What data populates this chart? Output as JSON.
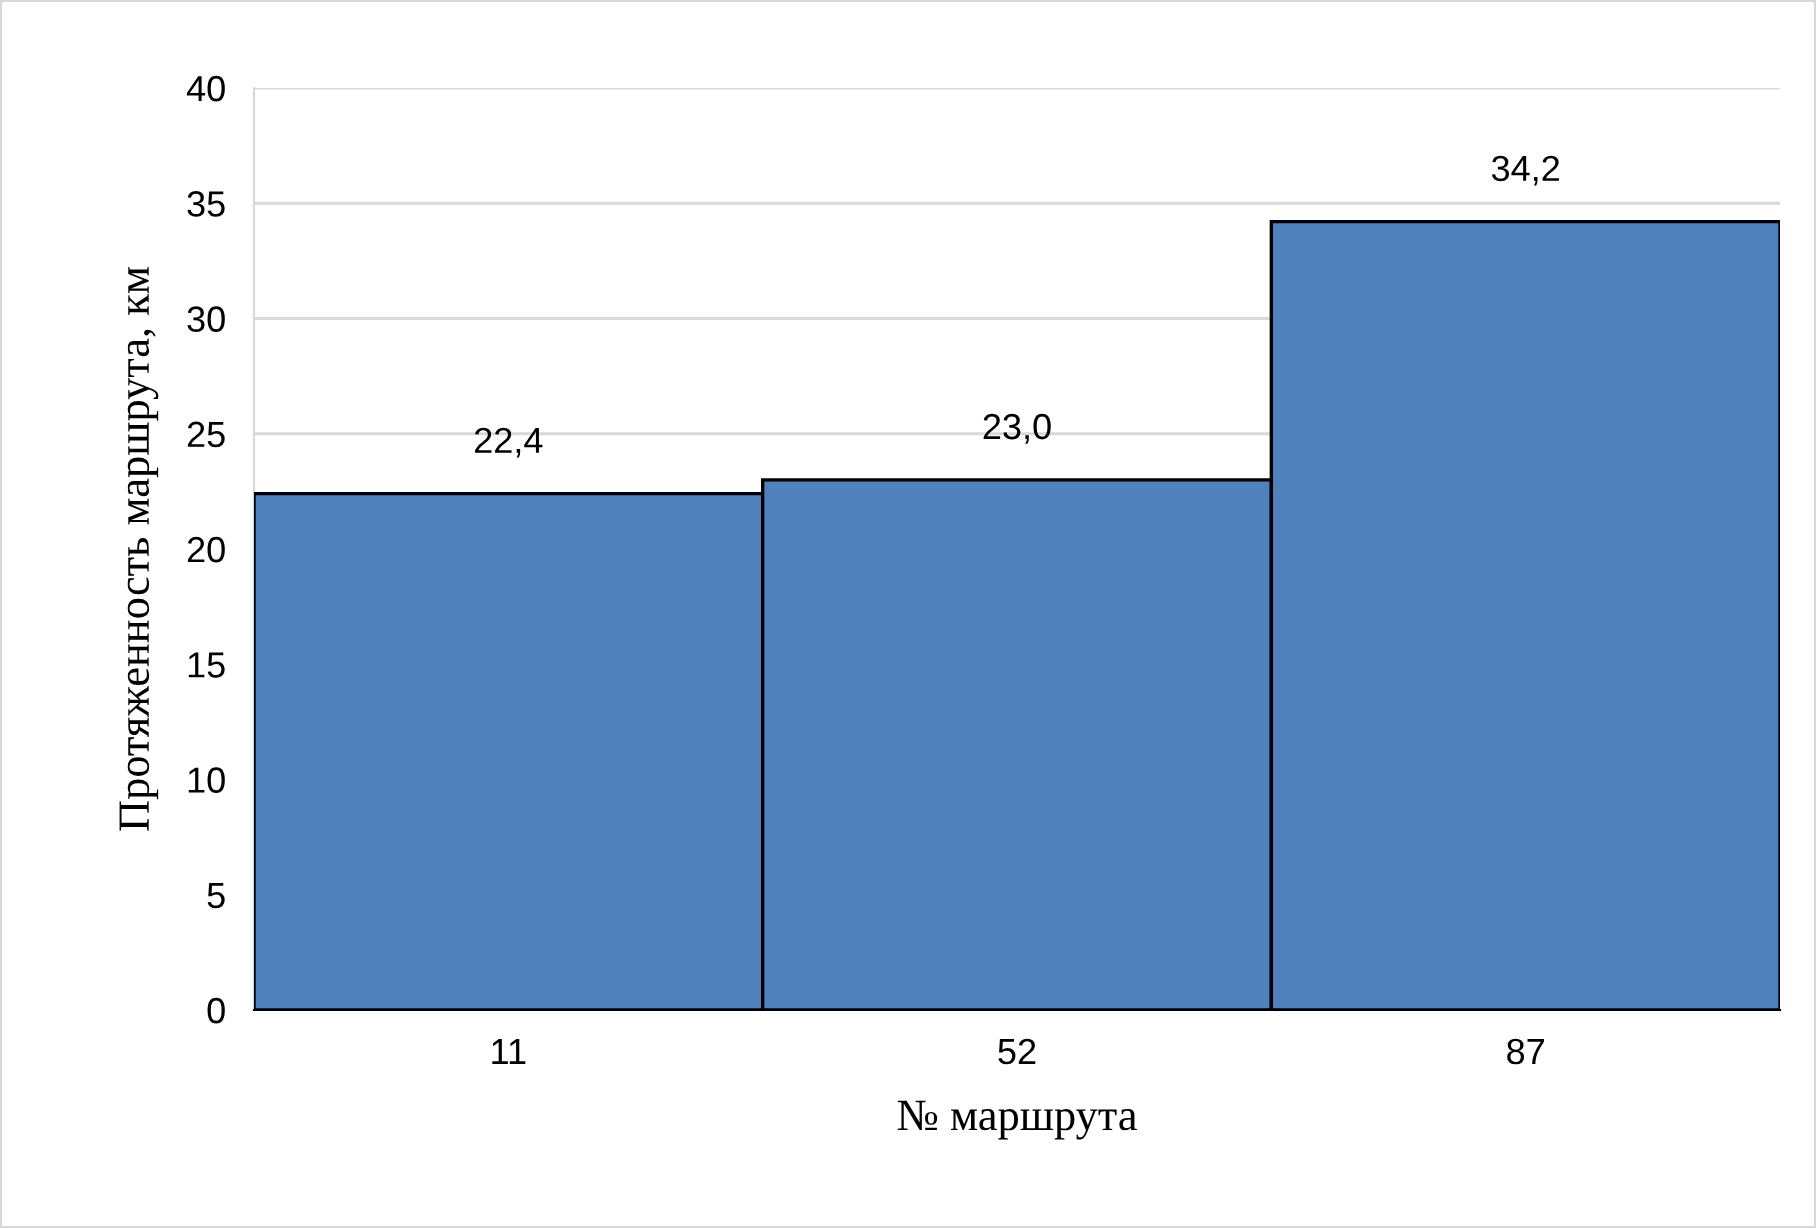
{
  "chart_data": {
    "type": "bar",
    "xlabel": "№ маршрута",
    "ylabel": "Протяженность маршрута, км",
    "categories": [
      "11",
      "52",
      "87"
    ],
    "values": [
      22.4,
      23.0,
      34.2
    ],
    "value_labels": [
      "22,4",
      "23,0",
      "34,2"
    ],
    "color": "#4f81bd",
    "ylim": [
      0,
      40
    ],
    "yticks": [
      0,
      5,
      10,
      15,
      20,
      25,
      30,
      35,
      40
    ],
    "grid": "y"
  }
}
